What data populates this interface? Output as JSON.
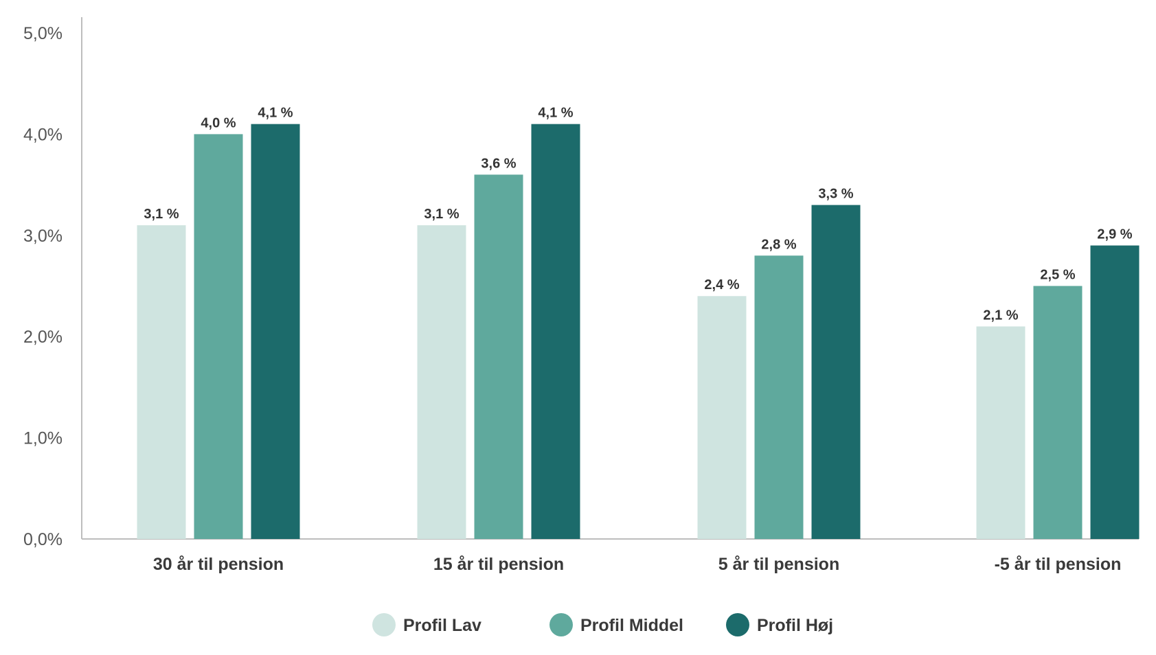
{
  "chart_data": {
    "type": "bar",
    "title": "",
    "xlabel": "",
    "ylabel": "",
    "ylim": [
      0,
      5
    ],
    "yticks": [
      "0,0%",
      "1,0%",
      "2,0%",
      "3,0%",
      "4,0%",
      "5,0%"
    ],
    "grid": false,
    "legend_position": "bottom",
    "categories": [
      "30 år til pension",
      "15 år til pension",
      "5 år til pension",
      "-5 år til pension"
    ],
    "series": [
      {
        "name": "Profil Lav",
        "color": "#cfe4e0",
        "values": [
          3.1,
          3.1,
          2.4,
          2.1
        ],
        "labels": [
          "3,1 %",
          "3,1 %",
          "2,4 %",
          "2,1 %"
        ]
      },
      {
        "name": "Profil Middel",
        "color": "#5fa99d",
        "values": [
          4.0,
          3.6,
          2.8,
          2.5
        ],
        "labels": [
          "4,0 %",
          "3,6 %",
          "2,8 %",
          "2,5 %"
        ]
      },
      {
        "name": "Profil Høj",
        "color": "#1c6b6b",
        "values": [
          4.1,
          4.1,
          3.3,
          2.9
        ],
        "labels": [
          "4,1 %",
          "4,1 %",
          "3,3 %",
          "2,9 %"
        ]
      }
    ]
  }
}
